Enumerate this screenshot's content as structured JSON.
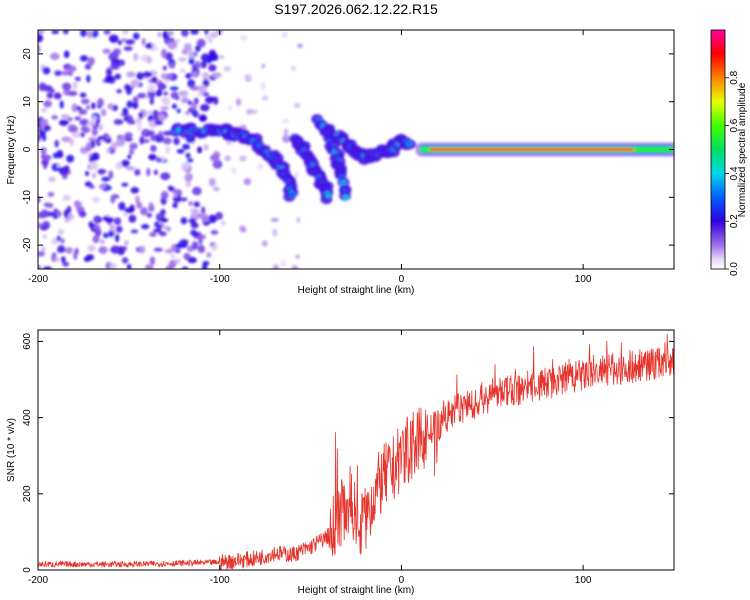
{
  "title": "S197.2026.062.12.22.R15",
  "chart_data": [
    {
      "type": "heatmap",
      "name": "spectrogram",
      "xlabel": "Height of straight line (km)",
      "ylabel": "Frequency (Hz)",
      "xlim": [
        -200,
        150
      ],
      "ylim": [
        -25,
        25
      ],
      "xticks": [
        -200,
        -100,
        0,
        100
      ],
      "xtick_labels": [
        "-200",
        "-100",
        "0",
        "100"
      ],
      "yticks": [
        -20,
        -10,
        0,
        10,
        20
      ],
      "ytick_labels": [
        "-20",
        "-10",
        "0",
        "10",
        "20"
      ],
      "colorbar": {
        "label": "Normalized spectral amplitude",
        "range": [
          0,
          1
        ],
        "ticks": [
          0.0,
          0.2,
          0.4,
          0.6,
          0.8
        ],
        "tick_labels": [
          "0.0",
          "0.2",
          "0.4",
          "0.6",
          "0.8"
        ]
      },
      "features": [
        {
          "desc": "noise field",
          "x_range": [
            -200,
            -100
          ],
          "y_range": [
            -25,
            25
          ],
          "amplitude": 0.2
        },
        {
          "desc": "curved arc",
          "x": [
            -125,
            -110,
            -100,
            -95,
            -88,
            -82,
            -76,
            -70,
            -66,
            -62,
            -60
          ],
          "y": [
            4,
            4,
            4,
            3.5,
            3,
            2,
            0,
            -2,
            -4,
            -7,
            -10
          ],
          "amplitude": 0.35
        },
        {
          "desc": "streak 1",
          "x": [
            -57,
            -54,
            -51,
            -48,
            -45,
            -42,
            -40
          ],
          "y": [
            2,
            0,
            -2,
            -4,
            -6,
            -8,
            -10
          ],
          "amplitude": 0.3
        },
        {
          "desc": "streak 2",
          "x": [
            -45,
            -41,
            -38,
            -35,
            -33,
            -30
          ],
          "y": [
            6,
            4,
            1,
            -2,
            -5,
            -11
          ],
          "amplitude": 0.28
        },
        {
          "desc": "cluster",
          "x": [
            -35,
            -30,
            -27,
            -24,
            -20,
            -15,
            -10,
            -5,
            0,
            5
          ],
          "y": [
            3,
            1,
            0,
            -1,
            -1.5,
            -1,
            -0.5,
            0,
            2,
            1
          ],
          "amplitude": 0.45
        },
        {
          "desc": "steady tone near 0 Hz",
          "x_range": [
            10,
            150
          ],
          "y": 0,
          "amplitude": 0.9
        }
      ]
    },
    {
      "type": "line",
      "name": "snr",
      "xlabel": "Height of straight line (km)",
      "ylabel": "SNR (10 * v/v)",
      "xlim": [
        -200,
        150
      ],
      "ylim": [
        0,
        630
      ],
      "xticks": [
        -200,
        -100,
        0,
        100
      ],
      "xtick_labels": [
        "-200",
        "-100",
        "0",
        "100"
      ],
      "yticks": [
        0,
        200,
        400,
        600
      ],
      "ytick_labels": [
        "0",
        "200",
        "400",
        "600"
      ],
      "color": "#e8342c",
      "envelope": {
        "x": [
          -200,
          -150,
          -100,
          -80,
          -70,
          -60,
          -50,
          -40,
          -35,
          -30,
          -25,
          -22,
          -20,
          -15,
          -10,
          -5,
          0,
          5,
          10,
          15,
          20,
          30,
          40,
          50,
          60,
          80,
          100,
          120,
          150
        ],
        "y": [
          15,
          15,
          20,
          30,
          45,
          40,
          60,
          90,
          130,
          180,
          150,
          120,
          130,
          200,
          240,
          260,
          300,
          320,
          340,
          360,
          380,
          420,
          440,
          460,
          470,
          490,
          510,
          530,
          550
        ]
      }
    }
  ]
}
